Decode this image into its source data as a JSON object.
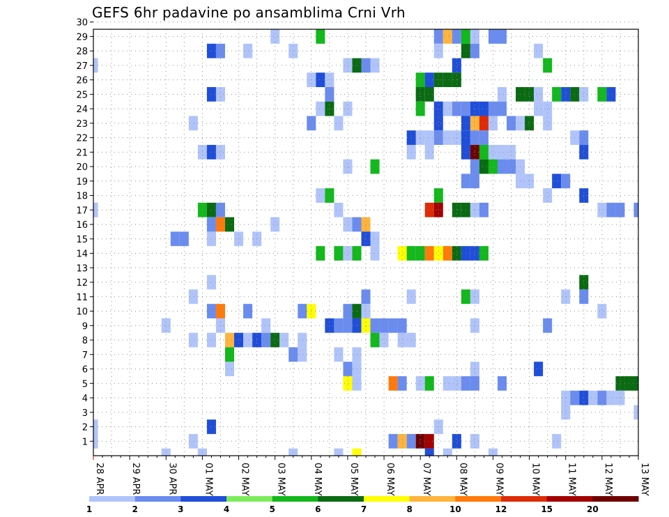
{
  "chart_data": {
    "type": "heatmap",
    "title": "GEFS 6hr padavine po ansamblima Crni Vrh",
    "xlabel": "",
    "ylabel": "",
    "y_values": [
      1,
      30
    ],
    "y_tick_labels": [
      "1",
      "2",
      "3",
      "4",
      "5",
      "6",
      "7",
      "8",
      "9",
      "10",
      "11",
      "12",
      "13",
      "14",
      "15",
      "16",
      "17",
      "18",
      "19",
      "20",
      "21",
      "22",
      "23",
      "24",
      "25",
      "26",
      "27",
      "28",
      "29",
      "30"
    ],
    "x_range_steps": [
      0,
      60
    ],
    "x_tick_labels": [
      "28 APR",
      "29 APR",
      "30 APR",
      "01 MAY",
      "02 MAY",
      "03 MAY",
      "04 MAY",
      "05 MAY",
      "06 MAY",
      "07 MAY",
      "08 MAY",
      "09 MAY",
      "10 MAY",
      "11 MAY",
      "12 MAY",
      "13 MAY"
    ],
    "grid": true,
    "legend": {
      "placement": "bottom",
      "bounds": [
        "1",
        "2",
        "3",
        "4",
        "5",
        "6",
        "7",
        "8",
        "10",
        "12",
        "15",
        "20"
      ],
      "colors": [
        "#b0c4fa",
        "#6a8cef",
        "#1f4ed9",
        "#7cec5c",
        "#12b81c",
        "#0a6b12",
        "#ffff00",
        "#ffb43c",
        "#ff7a0a",
        "#dd2b05",
        "#a30000",
        "#6e0000"
      ]
    },
    "cell_encoding": "each cell is [x_step, member, class]; x_step counts 6-hour steps from 28 APR 00Z, class indexes legend.colors",
    "cells": [
      [
        0,
        1,
        0
      ],
      [
        0,
        2,
        0
      ],
      [
        0,
        27,
        0
      ],
      [
        0,
        17,
        0
      ],
      [
        12,
        0,
        0
      ],
      [
        15,
        6,
        0
      ],
      [
        22,
        0,
        0
      ],
      [
        27,
        0,
        0
      ],
      [
        39,
        0,
        0
      ],
      [
        38,
        2,
        0
      ],
      [
        42,
        6,
        0
      ],
      [
        44,
        0,
        0
      ],
      [
        51,
        1,
        0
      ],
      [
        60,
        3,
        0
      ],
      [
        37,
        0,
        2
      ],
      [
        37,
        30,
        2
      ],
      [
        36,
        30,
        0
      ],
      [
        38,
        30,
        0
      ],
      [
        39,
        30,
        1
      ],
      [
        40,
        30,
        1
      ],
      [
        41,
        30,
        2
      ],
      [
        20,
        29,
        0
      ],
      [
        25,
        29,
        4
      ],
      [
        38,
        29,
        1
      ],
      [
        39,
        29,
        7
      ],
      [
        40,
        29,
        1
      ],
      [
        41,
        29,
        4
      ],
      [
        42,
        29,
        0
      ],
      [
        44,
        29,
        1
      ],
      [
        45,
        29,
        1
      ],
      [
        13,
        28,
        2
      ],
      [
        14,
        28,
        1
      ],
      [
        17,
        28,
        0
      ],
      [
        22,
        28,
        0
      ],
      [
        38,
        28,
        0
      ],
      [
        41,
        28,
        5
      ],
      [
        42,
        28,
        1
      ],
      [
        49,
        28,
        0
      ],
      [
        28,
        27,
        0
      ],
      [
        29,
        27,
        5
      ],
      [
        30,
        27,
        1
      ],
      [
        31,
        27,
        0
      ],
      [
        40,
        27,
        2
      ],
      [
        50,
        27,
        4
      ],
      [
        24,
        26,
        0
      ],
      [
        25,
        26,
        2
      ],
      [
        26,
        26,
        0
      ],
      [
        36,
        26,
        4
      ],
      [
        37,
        26,
        2
      ],
      [
        38,
        26,
        5
      ],
      [
        39,
        26,
        5
      ],
      [
        40,
        26,
        5
      ],
      [
        13,
        25,
        2
      ],
      [
        14,
        25,
        0
      ],
      [
        26,
        25,
        1
      ],
      [
        36,
        25,
        5
      ],
      [
        37,
        25,
        5
      ],
      [
        45,
        25,
        0
      ],
      [
        47,
        25,
        5
      ],
      [
        48,
        25,
        5
      ],
      [
        49,
        25,
        0
      ],
      [
        51,
        25,
        4
      ],
      [
        52,
        25,
        2
      ],
      [
        53,
        25,
        5
      ],
      [
        54,
        25,
        0
      ],
      [
        56,
        25,
        4
      ],
      [
        57,
        25,
        2
      ],
      [
        25,
        24,
        0
      ],
      [
        26,
        24,
        5
      ],
      [
        28,
        24,
        0
      ],
      [
        36,
        24,
        4
      ],
      [
        38,
        24,
        2
      ],
      [
        39,
        24,
        0
      ],
      [
        40,
        24,
        1
      ],
      [
        41,
        24,
        1
      ],
      [
        42,
        24,
        2
      ],
      [
        43,
        24,
        2
      ],
      [
        44,
        24,
        1
      ],
      [
        45,
        24,
        1
      ],
      [
        49,
        24,
        0
      ],
      [
        50,
        24,
        0
      ],
      [
        11,
        23,
        0
      ],
      [
        24,
        23,
        1
      ],
      [
        27,
        23,
        0
      ],
      [
        38,
        23,
        2
      ],
      [
        41,
        23,
        2
      ],
      [
        42,
        23,
        7
      ],
      [
        43,
        23,
        9
      ],
      [
        44,
        23,
        0
      ],
      [
        46,
        23,
        1
      ],
      [
        47,
        23,
        0
      ],
      [
        48,
        23,
        5
      ],
      [
        50,
        23,
        0
      ],
      [
        36,
        22,
        0
      ],
      [
        37,
        22,
        0
      ],
      [
        38,
        22,
        1
      ],
      [
        39,
        22,
        0
      ],
      [
        40,
        22,
        0
      ],
      [
        41,
        22,
        2
      ],
      [
        42,
        22,
        1
      ],
      [
        43,
        22,
        1
      ],
      [
        53,
        22,
        0
      ],
      [
        54,
        22,
        1
      ],
      [
        35,
        22,
        2
      ],
      [
        12,
        21,
        0
      ],
      [
        13,
        21,
        2
      ],
      [
        14,
        21,
        0
      ],
      [
        35,
        21,
        0
      ],
      [
        37,
        21,
        0
      ],
      [
        41,
        21,
        2
      ],
      [
        42,
        21,
        11
      ],
      [
        43,
        21,
        4
      ],
      [
        44,
        21,
        0
      ],
      [
        45,
        21,
        0
      ],
      [
        46,
        21,
        0
      ],
      [
        54,
        21,
        2
      ],
      [
        28,
        20,
        0
      ],
      [
        31,
        20,
        4
      ],
      [
        42,
        20,
        1
      ],
      [
        43,
        20,
        5
      ],
      [
        44,
        20,
        4
      ],
      [
        45,
        20,
        1
      ],
      [
        46,
        20,
        1
      ],
      [
        47,
        20,
        0
      ],
      [
        41,
        19,
        1
      ],
      [
        42,
        19,
        1
      ],
      [
        47,
        19,
        0
      ],
      [
        48,
        19,
        0
      ],
      [
        51,
        19,
        2
      ],
      [
        52,
        19,
        1
      ],
      [
        25,
        18,
        0
      ],
      [
        26,
        18,
        4
      ],
      [
        38,
        18,
        4
      ],
      [
        50,
        18,
        0
      ],
      [
        54,
        18,
        2
      ],
      [
        0,
        17,
        0
      ],
      [
        12,
        17,
        4
      ],
      [
        13,
        17,
        5
      ],
      [
        14,
        17,
        1
      ],
      [
        27,
        17,
        0
      ],
      [
        37,
        17,
        9
      ],
      [
        38,
        17,
        10
      ],
      [
        40,
        17,
        5
      ],
      [
        41,
        17,
        5
      ],
      [
        42,
        17,
        0
      ],
      [
        43,
        17,
        1
      ],
      [
        56,
        17,
        0
      ],
      [
        57,
        17,
        1
      ],
      [
        58,
        17,
        1
      ],
      [
        60,
        17,
        1
      ],
      [
        13,
        16,
        1
      ],
      [
        14,
        16,
        8
      ],
      [
        15,
        16,
        5
      ],
      [
        20,
        16,
        0
      ],
      [
        28,
        16,
        0
      ],
      [
        29,
        16,
        1
      ],
      [
        30,
        16,
        7
      ],
      [
        9,
        15,
        1
      ],
      [
        10,
        15,
        1
      ],
      [
        13,
        15,
        0
      ],
      [
        16,
        15,
        0
      ],
      [
        18,
        15,
        0
      ],
      [
        30,
        15,
        2
      ],
      [
        31,
        15,
        0
      ],
      [
        25,
        14,
        4
      ],
      [
        27,
        14,
        4
      ],
      [
        28,
        14,
        0
      ],
      [
        29,
        14,
        4
      ],
      [
        31,
        14,
        0
      ],
      [
        34,
        14,
        6
      ],
      [
        35,
        14,
        4
      ],
      [
        36,
        14,
        4
      ],
      [
        37,
        14,
        8
      ],
      [
        38,
        14,
        6
      ],
      [
        39,
        14,
        8
      ],
      [
        40,
        14,
        5
      ],
      [
        41,
        14,
        2
      ],
      [
        42,
        14,
        2
      ],
      [
        43,
        14,
        4
      ],
      [
        13,
        12,
        0
      ],
      [
        54,
        12,
        5
      ],
      [
        11,
        11,
        0
      ],
      [
        30,
        11,
        1
      ],
      [
        35,
        11,
        0
      ],
      [
        41,
        11,
        4
      ],
      [
        42,
        11,
        0
      ],
      [
        52,
        11,
        0
      ],
      [
        54,
        11,
        1
      ],
      [
        13,
        10,
        1
      ],
      [
        14,
        10,
        8
      ],
      [
        17,
        10,
        1
      ],
      [
        23,
        10,
        1
      ],
      [
        24,
        10,
        6
      ],
      [
        28,
        10,
        1
      ],
      [
        29,
        10,
        5
      ],
      [
        30,
        10,
        0
      ],
      [
        56,
        10,
        0
      ],
      [
        8,
        9,
        0
      ],
      [
        14,
        9,
        0
      ],
      [
        19,
        9,
        0
      ],
      [
        26,
        9,
        2
      ],
      [
        27,
        9,
        1
      ],
      [
        28,
        9,
        1
      ],
      [
        29,
        9,
        2
      ],
      [
        30,
        9,
        6
      ],
      [
        31,
        9,
        1
      ],
      [
        32,
        9,
        1
      ],
      [
        33,
        9,
        1
      ],
      [
        34,
        9,
        1
      ],
      [
        42,
        9,
        0
      ],
      [
        50,
        9,
        1
      ],
      [
        11,
        8,
        0
      ],
      [
        13,
        8,
        0
      ],
      [
        15,
        8,
        7
      ],
      [
        16,
        8,
        2
      ],
      [
        17,
        8,
        0
      ],
      [
        18,
        8,
        2
      ],
      [
        19,
        8,
        1
      ],
      [
        20,
        8,
        5
      ],
      [
        21,
        8,
        0
      ],
      [
        23,
        8,
        0
      ],
      [
        31,
        8,
        4
      ],
      [
        32,
        8,
        0
      ],
      [
        34,
        8,
        0
      ],
      [
        35,
        8,
        0
      ],
      [
        15,
        7,
        4
      ],
      [
        22,
        7,
        1
      ],
      [
        23,
        7,
        0
      ],
      [
        27,
        7,
        0
      ],
      [
        29,
        7,
        0
      ],
      [
        28,
        6,
        1
      ],
      [
        29,
        6,
        0
      ],
      [
        49,
        6,
        2
      ],
      [
        28,
        5,
        6
      ],
      [
        29,
        5,
        0
      ],
      [
        33,
        5,
        8
      ],
      [
        34,
        5,
        1
      ],
      [
        36,
        5,
        0
      ],
      [
        37,
        5,
        4
      ],
      [
        39,
        5,
        0
      ],
      [
        40,
        5,
        0
      ],
      [
        41,
        5,
        1
      ],
      [
        42,
        5,
        1
      ],
      [
        45,
        5,
        1
      ],
      [
        58,
        5,
        5
      ],
      [
        59,
        5,
        5
      ],
      [
        60,
        5,
        5
      ],
      [
        52,
        4,
        0
      ],
      [
        53,
        4,
        1
      ],
      [
        54,
        4,
        2
      ],
      [
        55,
        4,
        0
      ],
      [
        56,
        4,
        1
      ],
      [
        57,
        4,
        0
      ],
      [
        58,
        4,
        0
      ],
      [
        52,
        3,
        0
      ],
      [
        13,
        2,
        2
      ],
      [
        11,
        1,
        0
      ],
      [
        33,
        1,
        1
      ],
      [
        34,
        1,
        7
      ],
      [
        35,
        1,
        1
      ],
      [
        36,
        1,
        11
      ],
      [
        37,
        1,
        10
      ],
      [
        40,
        1,
        2
      ],
      [
        42,
        1,
        0
      ],
      [
        8,
        0,
        0
      ],
      [
        29,
        0,
        6
      ]
    ]
  }
}
